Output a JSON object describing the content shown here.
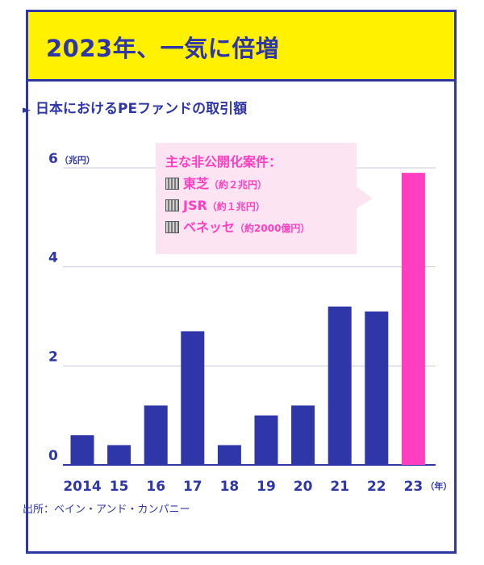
{
  "headline": "2023年、一気に倍増",
  "subtitle": "日本におけるPEファンドの取引額",
  "subtitle_marker": "►",
  "source": "出所：ベイン・アンド・カンパニー",
  "colors": {
    "primary": "#2e36a8",
    "highlight": "#ff3fbf",
    "header_bg": "#fff100",
    "callout_bg": "#fde4f3",
    "grid": "#c8c8de"
  },
  "callout": {
    "title": "主な非公開化案件：",
    "items": [
      {
        "icon": "building-icon",
        "name": "東芝",
        "note": "（約２兆円）"
      },
      {
        "icon": "building-icon",
        "name": "JSR",
        "note": "（約１兆円）"
      },
      {
        "icon": "building-icon",
        "name": "ベネッセ",
        "note": "（約2000億円）"
      }
    ]
  },
  "chart_data": {
    "type": "bar",
    "categories": [
      "2014",
      "15",
      "16",
      "17",
      "18",
      "19",
      "20",
      "21",
      "22",
      "23"
    ],
    "values": [
      0.6,
      0.4,
      1.2,
      2.7,
      0.4,
      1.0,
      1.2,
      3.2,
      3.1,
      5.9
    ],
    "highlight_index": 9,
    "yticks": [
      0,
      2,
      4,
      6
    ],
    "ylim": [
      0,
      6
    ],
    "yunit": "（兆円）",
    "xunit": "（年）",
    "grid": true
  }
}
